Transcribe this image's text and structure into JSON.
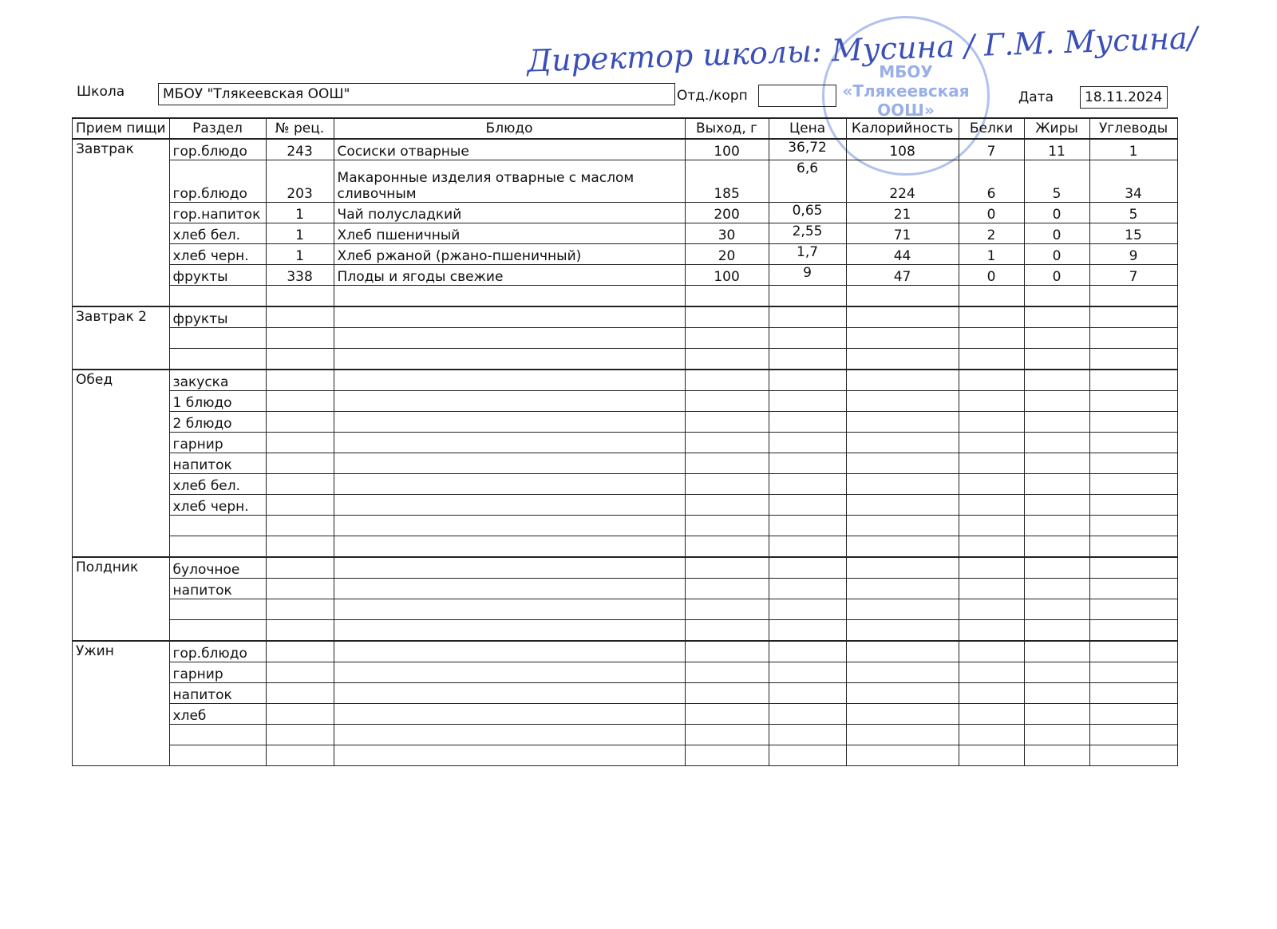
{
  "header": {
    "school_label": "Школа",
    "school": "МБОУ \"Тлякеевская ООШ\"",
    "branch_label": "Отд./корп",
    "branch": null,
    "date_label": "Дата",
    "date": "18.11.2024"
  },
  "signature": "Директор школы: Мусина / Г.М. Мусина/",
  "stamp": {
    "line1": "МБОУ",
    "line2": "«Тлякеевская",
    "line3": "ООШ»"
  },
  "table": {
    "columns": [
      "Прием пищи",
      "Раздел",
      "№ рец.",
      "Блюдо",
      "Выход, г",
      "Цена",
      "Калорийность",
      "Белки",
      "Жиры",
      "Углеводы"
    ],
    "sections": [
      {
        "meal": "Завтрак",
        "rows": [
          [
            "гор.блюдо",
            "243",
            "Сосиски отварные",
            "100",
            "36,72",
            "108",
            "7",
            "11",
            "1"
          ],
          [
            "гор.блюдо",
            "203",
            "Макаронные изделия отварные с маслом сливочным",
            "185",
            "6,6",
            "224",
            "6",
            "5",
            "34"
          ],
          [
            "гор.напиток",
            "1",
            "Чай полусладкий",
            "200",
            "0,65",
            "21",
            "0",
            "0",
            "5"
          ],
          [
            "хлеб бел.",
            "1",
            "Хлеб пшеничный",
            "30",
            "2,55",
            "71",
            "2",
            "0",
            "15"
          ],
          [
            "хлеб черн.",
            "1",
            "Хлеб ржаной (ржано-пшеничный)",
            "20",
            "1,7",
            "44",
            "1",
            "0",
            "9"
          ],
          [
            "фрукты",
            "338",
            "Плоды и ягоды свежие",
            "100",
            "9",
            "47",
            "0",
            "0",
            "7"
          ],
          [
            null,
            null,
            null,
            null,
            null,
            null,
            null,
            null,
            null
          ]
        ]
      },
      {
        "meal": "Завтрак 2",
        "rows": [
          [
            "фрукты",
            null,
            null,
            null,
            null,
            null,
            null,
            null,
            null
          ],
          [
            null,
            null,
            null,
            null,
            null,
            null,
            null,
            null,
            null
          ],
          [
            null,
            null,
            null,
            null,
            null,
            null,
            null,
            null,
            null
          ]
        ]
      },
      {
        "meal": "Обед",
        "rows": [
          [
            "закуска",
            null,
            null,
            null,
            null,
            null,
            null,
            null,
            null
          ],
          [
            "1 блюдо",
            null,
            null,
            null,
            null,
            null,
            null,
            null,
            null
          ],
          [
            "2 блюдо",
            null,
            null,
            null,
            null,
            null,
            null,
            null,
            null
          ],
          [
            "гарнир",
            null,
            null,
            null,
            null,
            null,
            null,
            null,
            null
          ],
          [
            "напиток",
            null,
            null,
            null,
            null,
            null,
            null,
            null,
            null
          ],
          [
            "хлеб бел.",
            null,
            null,
            null,
            null,
            null,
            null,
            null,
            null
          ],
          [
            "хлеб черн.",
            null,
            null,
            null,
            null,
            null,
            null,
            null,
            null
          ],
          [
            null,
            null,
            null,
            null,
            null,
            null,
            null,
            null,
            null
          ],
          [
            null,
            null,
            null,
            null,
            null,
            null,
            null,
            null,
            null
          ]
        ]
      },
      {
        "meal": "Полдник",
        "rows": [
          [
            "булочное",
            null,
            null,
            null,
            null,
            null,
            null,
            null,
            null
          ],
          [
            "напиток",
            null,
            null,
            null,
            null,
            null,
            null,
            null,
            null
          ],
          [
            null,
            null,
            null,
            null,
            null,
            null,
            null,
            null,
            null
          ],
          [
            null,
            null,
            null,
            null,
            null,
            null,
            null,
            null,
            null
          ]
        ]
      },
      {
        "meal": "Ужин",
        "rows": [
          [
            "гор.блюдо",
            null,
            null,
            null,
            null,
            null,
            null,
            null,
            null
          ],
          [
            "гарнир",
            null,
            null,
            null,
            null,
            null,
            null,
            null,
            null
          ],
          [
            "напиток",
            null,
            null,
            null,
            null,
            null,
            null,
            null,
            null
          ],
          [
            "хлеб",
            null,
            null,
            null,
            null,
            null,
            null,
            null,
            null
          ],
          [
            null,
            null,
            null,
            null,
            null,
            null,
            null,
            null,
            null
          ],
          [
            null,
            null,
            null,
            null,
            null,
            null,
            null,
            null,
            null
          ]
        ]
      }
    ]
  }
}
